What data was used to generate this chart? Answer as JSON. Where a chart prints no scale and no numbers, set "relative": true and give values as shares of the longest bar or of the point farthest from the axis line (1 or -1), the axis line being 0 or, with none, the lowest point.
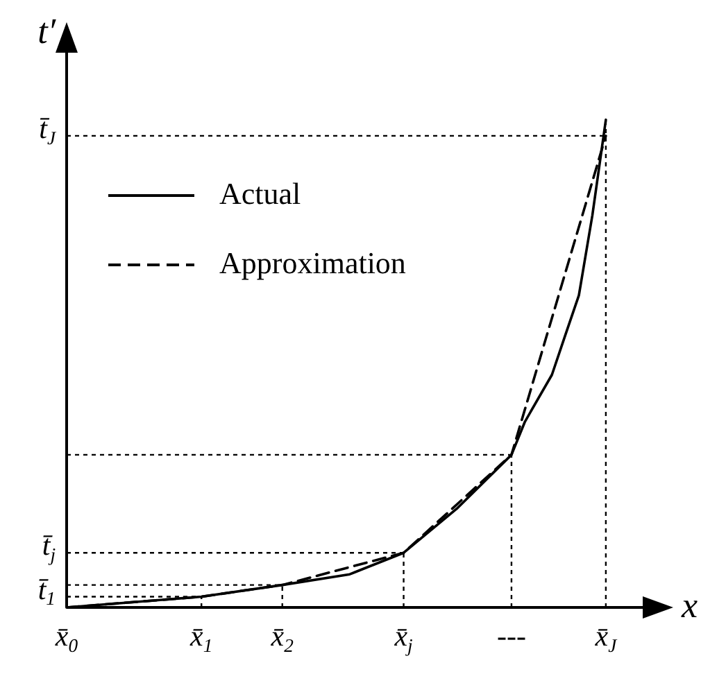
{
  "chart_data": {
    "type": "line",
    "xlabel": "x",
    "ylabel": "t′",
    "relative": true,
    "categories": [
      "x̄$_{0}$",
      null,
      null,
      null,
      null,
      null,
      null,
      null,
      null,
      null,
      "x̄$_{1}$",
      null,
      null,
      null,
      null,
      null,
      "x̄$_{2}$",
      null,
      null,
      null,
      null,
      null,
      null,
      null,
      null,
      "x̄$_{j}$",
      null,
      null,
      null,
      null,
      null,
      null,
      null,
      "---",
      null,
      null,
      null,
      null,
      null,
      null,
      "x̄$_{J}$",
      null,
      null,
      null,
      null,
      null
    ],
    "series": [
      {
        "name": "Actual",
        "color": "#000000",
        "line_style": "solid",
        "values": [
          0,
          null,
          null,
          null,
          null,
          null,
          null,
          null,
          null,
          null,
          0.022,
          null,
          null,
          null,
          null,
          null,
          0.046,
          null,
          null,
          null,
          null,
          0.068,
          null,
          null,
          null,
          0.112,
          null,
          null,
          null,
          0.204,
          null,
          null,
          null,
          0.313,
          0.381,
          null,
          0.477,
          0.559,
          0.64,
          0.804,
          1,
          null,
          null,
          null,
          null,
          null
        ]
      },
      {
        "name": "Approximation",
        "color": "#000000",
        "line_style": "dashed",
        "values": [
          0,
          null,
          null,
          null,
          null,
          null,
          null,
          null,
          null,
          null,
          0.022,
          null,
          null,
          null,
          null,
          null,
          0.046,
          null,
          null,
          null,
          null,
          null,
          null,
          null,
          null,
          0.112,
          null,
          null,
          null,
          null,
          null,
          null,
          null,
          0.313,
          null,
          null,
          null,
          null,
          null,
          null,
          0.967,
          null,
          null,
          null,
          null,
          null
        ]
      }
    ],
    "ref_lines": [
      {
        "axis": "y",
        "value": 0.022,
        "label": "t̄$_{1}$",
        "line_style": "dotted"
      },
      {
        "axis": "y",
        "value": 0.046,
        "label": null,
        "line_style": "dotted"
      },
      {
        "axis": "y",
        "value": 0.112,
        "label": "t̄$_{j}$",
        "line_style": "dotted"
      },
      {
        "axis": "y",
        "value": 0.313,
        "label": null,
        "line_style": "dotted"
      },
      {
        "axis": "y",
        "value": 0.967,
        "label": "t̄$_{J}$",
        "line_style": "dotted"
      },
      {
        "axis": "x",
        "value": "x̄$_{j}$",
        "label": null,
        "line_style": "dotted"
      },
      {
        "axis": "x",
        "value": "---",
        "label": null,
        "line_style": "dotted"
      },
      {
        "axis": "x",
        "value": "x̄$_{J}$",
        "label": null,
        "line_style": "dotted"
      }
    ],
    "legend": "top left",
    "marker": "none",
    "grid": false
  }
}
